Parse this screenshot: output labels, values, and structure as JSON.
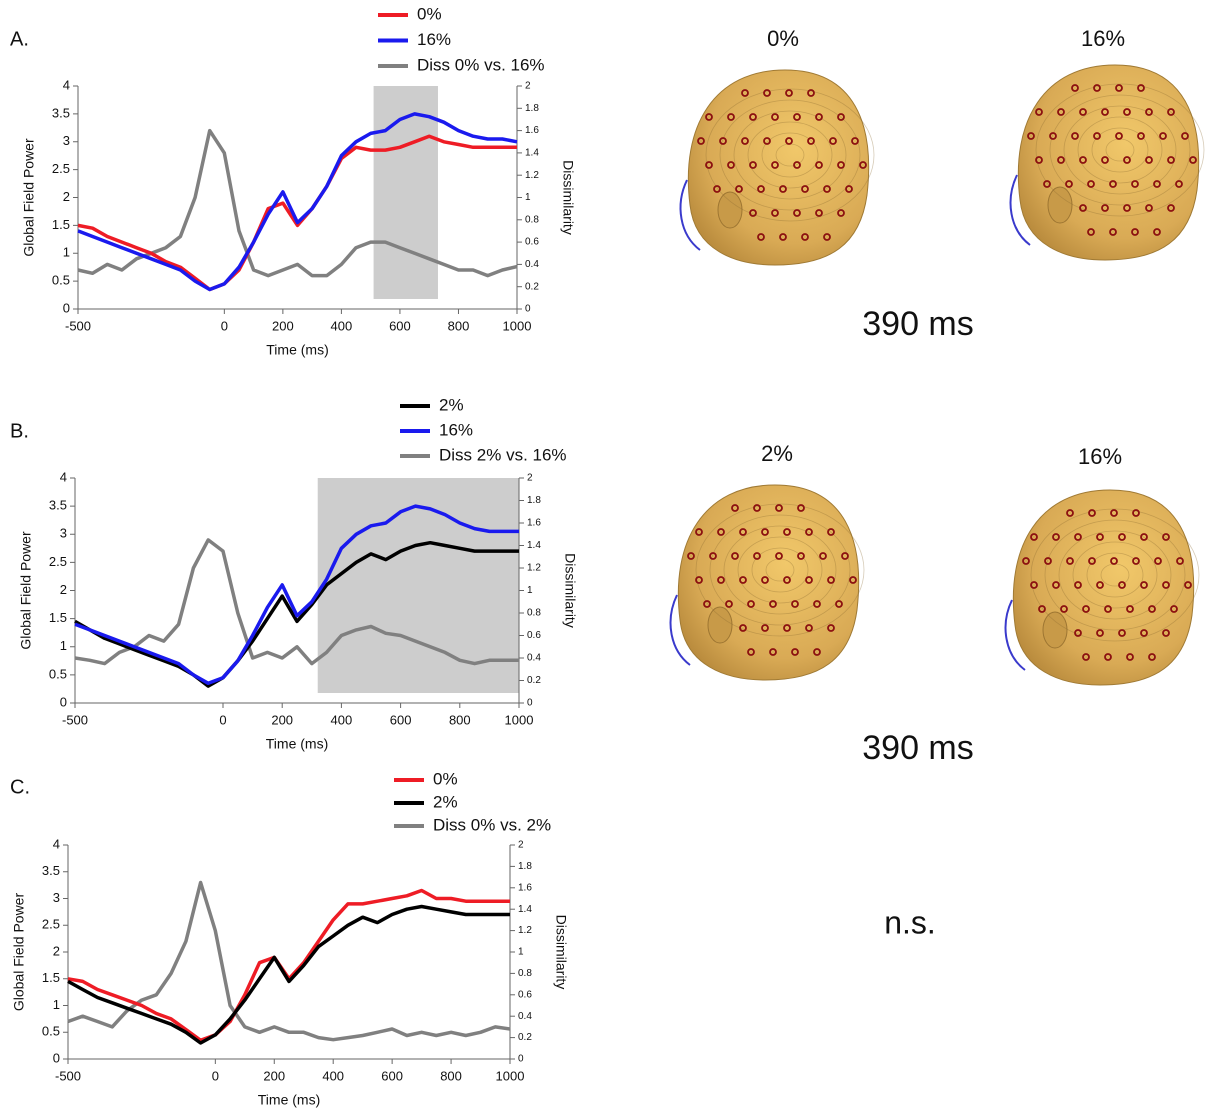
{
  "chart_data": [
    {
      "type": "line",
      "panel": "A.",
      "xlabel": "Time (ms)",
      "ylabel": "Global Field Power",
      "y2label": "Dissimilarity",
      "xlim": [
        -500,
        1000
      ],
      "xticks": [
        -500,
        0,
        200,
        400,
        600,
        800,
        1000
      ],
      "ylim": [
        0,
        4
      ],
      "yticks": [
        0,
        0.5,
        1,
        1.5,
        2,
        2.5,
        3,
        3.5,
        4
      ],
      "y2lim": [
        0,
        2
      ],
      "y2ticks": [
        0,
        0.2,
        0.4,
        0.6,
        0.8,
        1,
        1.2,
        1.4,
        1.6,
        1.8,
        2
      ],
      "highlight_x": [
        510,
        730
      ],
      "x": [
        -500,
        -450,
        -400,
        -350,
        -300,
        -250,
        -200,
        -150,
        -100,
        -50,
        0,
        50,
        100,
        150,
        200,
        250,
        300,
        350,
        400,
        450,
        500,
        550,
        600,
        650,
        700,
        750,
        800,
        850,
        900,
        950,
        1000
      ],
      "series": [
        {
          "name": "0%",
          "color": "#ee1c25",
          "values": [
            1.5,
            1.45,
            1.3,
            1.2,
            1.1,
            1.0,
            0.85,
            0.75,
            0.55,
            0.35,
            0.45,
            0.7,
            1.2,
            1.8,
            1.9,
            1.5,
            1.8,
            2.2,
            2.7,
            2.9,
            2.85,
            2.85,
            2.9,
            3.0,
            3.1,
            3.0,
            2.95,
            2.9,
            2.9,
            2.9,
            2.9
          ]
        },
        {
          "name": "16%",
          "color": "#1a1aee",
          "values": [
            1.4,
            1.3,
            1.2,
            1.1,
            1.0,
            0.9,
            0.8,
            0.7,
            0.5,
            0.35,
            0.45,
            0.75,
            1.2,
            1.7,
            2.1,
            1.55,
            1.8,
            2.2,
            2.75,
            3.0,
            3.15,
            3.2,
            3.4,
            3.5,
            3.45,
            3.35,
            3.2,
            3.1,
            3.05,
            3.05,
            3.0
          ]
        },
        {
          "name": "Diss 0% vs. 16%",
          "color": "#808080",
          "axis": "y2",
          "values": [
            0.35,
            0.32,
            0.4,
            0.35,
            0.45,
            0.5,
            0.55,
            0.65,
            1.0,
            1.6,
            1.4,
            0.7,
            0.35,
            0.3,
            0.35,
            0.4,
            0.3,
            0.3,
            0.4,
            0.55,
            0.6,
            0.6,
            0.55,
            0.5,
            0.45,
            0.4,
            0.35,
            0.35,
            0.3,
            0.35,
            0.38
          ]
        }
      ],
      "maps": {
        "labels": [
          "0%",
          "16%"
        ],
        "time": "390 ms"
      }
    },
    {
      "type": "line",
      "panel": "B.",
      "xlabel": "Time (ms)",
      "ylabel": "Global Field Power",
      "y2label": "Dissimilarity",
      "xlim": [
        -500,
        1000
      ],
      "xticks": [
        -500,
        0,
        200,
        400,
        600,
        800,
        1000
      ],
      "ylim": [
        0,
        4
      ],
      "yticks": [
        0,
        0.5,
        1,
        1.5,
        2,
        2.5,
        3,
        3.5,
        4
      ],
      "y2lim": [
        0,
        2
      ],
      "y2ticks": [
        0,
        0.2,
        0.4,
        0.6,
        0.8,
        1,
        1.2,
        1.4,
        1.6,
        1.8,
        2
      ],
      "highlight_x": [
        320,
        1000
      ],
      "x": [
        -500,
        -450,
        -400,
        -350,
        -300,
        -250,
        -200,
        -150,
        -100,
        -50,
        0,
        50,
        100,
        150,
        200,
        250,
        300,
        350,
        400,
        450,
        500,
        550,
        600,
        650,
        700,
        750,
        800,
        850,
        900,
        950,
        1000
      ],
      "series": [
        {
          "name": "2%",
          "color": "#000000",
          "values": [
            1.45,
            1.3,
            1.15,
            1.05,
            0.95,
            0.85,
            0.75,
            0.65,
            0.5,
            0.3,
            0.45,
            0.75,
            1.1,
            1.5,
            1.9,
            1.45,
            1.75,
            2.1,
            2.3,
            2.5,
            2.65,
            2.55,
            2.7,
            2.8,
            2.85,
            2.8,
            2.75,
            2.7,
            2.7,
            2.7,
            2.7
          ]
        },
        {
          "name": "16%",
          "color": "#1a1aee",
          "values": [
            1.4,
            1.3,
            1.2,
            1.1,
            1.0,
            0.9,
            0.8,
            0.7,
            0.5,
            0.35,
            0.45,
            0.75,
            1.2,
            1.7,
            2.1,
            1.55,
            1.8,
            2.2,
            2.75,
            3.0,
            3.15,
            3.2,
            3.4,
            3.5,
            3.45,
            3.35,
            3.2,
            3.1,
            3.05,
            3.05,
            3.05
          ]
        },
        {
          "name": "Diss 2% vs. 16%",
          "color": "#808080",
          "axis": "y2",
          "values": [
            0.4,
            0.38,
            0.35,
            0.45,
            0.5,
            0.6,
            0.55,
            0.7,
            1.2,
            1.45,
            1.35,
            0.8,
            0.4,
            0.45,
            0.4,
            0.5,
            0.35,
            0.45,
            0.6,
            0.65,
            0.68,
            0.62,
            0.6,
            0.55,
            0.5,
            0.45,
            0.38,
            0.35,
            0.38,
            0.38,
            0.38
          ]
        }
      ],
      "maps": {
        "labels": [
          "2%",
          "16%"
        ],
        "time": "390 ms"
      }
    },
    {
      "type": "line",
      "panel": "C.",
      "xlabel": "Time (ms)",
      "ylabel": "Global Field Power",
      "y2label": "Dissimilarity",
      "xlim": [
        -500,
        1000
      ],
      "xticks": [
        -500,
        0,
        200,
        400,
        600,
        800,
        1000
      ],
      "ylim": [
        0,
        4
      ],
      "yticks": [
        0,
        0.5,
        1,
        1.5,
        2,
        2.5,
        3,
        3.5,
        4
      ],
      "y2lim": [
        0,
        2
      ],
      "y2ticks": [
        0,
        0.2,
        0.4,
        0.6,
        0.8,
        1,
        1.2,
        1.4,
        1.6,
        1.8,
        2
      ],
      "x": [
        -500,
        -450,
        -400,
        -350,
        -300,
        -250,
        -200,
        -150,
        -100,
        -50,
        0,
        50,
        100,
        150,
        200,
        250,
        300,
        350,
        400,
        450,
        500,
        550,
        600,
        650,
        700,
        750,
        800,
        850,
        900,
        950,
        1000
      ],
      "series": [
        {
          "name": "0%",
          "color": "#ee1c25",
          "values": [
            1.5,
            1.45,
            1.3,
            1.2,
            1.1,
            1.0,
            0.85,
            0.75,
            0.55,
            0.35,
            0.45,
            0.7,
            1.2,
            1.8,
            1.9,
            1.5,
            1.8,
            2.2,
            2.6,
            2.9,
            2.9,
            2.95,
            3.0,
            3.05,
            3.15,
            3.0,
            3.0,
            2.95,
            2.95,
            2.95,
            2.95
          ]
        },
        {
          "name": "2%",
          "color": "#000000",
          "values": [
            1.45,
            1.3,
            1.15,
            1.05,
            0.95,
            0.85,
            0.75,
            0.65,
            0.5,
            0.3,
            0.45,
            0.75,
            1.1,
            1.5,
            1.9,
            1.45,
            1.75,
            2.1,
            2.3,
            2.5,
            2.65,
            2.55,
            2.7,
            2.8,
            2.85,
            2.8,
            2.75,
            2.7,
            2.7,
            2.7,
            2.7
          ]
        },
        {
          "name": "Diss 0% vs. 2%",
          "color": "#808080",
          "axis": "y2",
          "values": [
            0.35,
            0.4,
            0.35,
            0.3,
            0.45,
            0.55,
            0.6,
            0.8,
            1.1,
            1.65,
            1.2,
            0.5,
            0.3,
            0.25,
            0.3,
            0.25,
            0.25,
            0.2,
            0.18,
            0.2,
            0.22,
            0.25,
            0.28,
            0.22,
            0.25,
            0.22,
            0.25,
            0.22,
            0.25,
            0.3,
            0.28
          ]
        }
      ],
      "result": "n.s."
    }
  ]
}
